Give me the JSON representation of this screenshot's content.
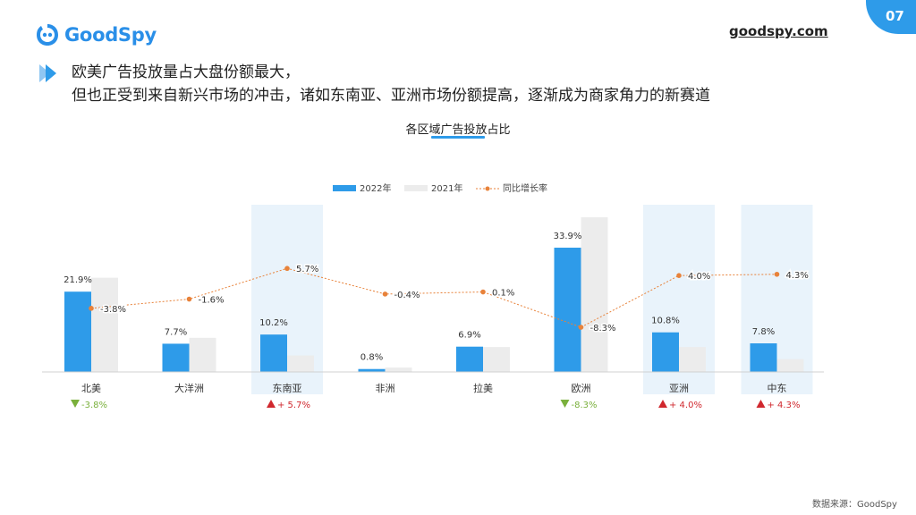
{
  "brand": {
    "name": "GoodSpy",
    "site": "goodspy.com",
    "page": "07"
  },
  "headline": {
    "line1": "欧美广告投放量占大盘份额最大，",
    "line2": "但也正受到来自新兴市场的冲击，诸如东南亚、亚洲市场份额提高，逐渐成为商家角力的新赛道"
  },
  "source": "数据来源：GoodSpy",
  "colors": {
    "accent": "#2e9be9",
    "bar2022": "#2e9be9",
    "bar2021": "#ececec",
    "line": "#e8823a",
    "up": "#d0282e",
    "down": "#7ab03c",
    "highlight": "#e9f3fb"
  },
  "chart_data": {
    "type": "bar",
    "title": "各区域广告投放占比",
    "categories": [
      "北美",
      "大洋洲",
      "东南亚",
      "非洲",
      "拉美",
      "欧洲",
      "亚洲",
      "中东"
    ],
    "series": [
      {
        "name": "2022年",
        "values": [
          21.9,
          7.7,
          10.2,
          0.8,
          6.9,
          33.9,
          10.8,
          7.8
        ],
        "labels": [
          "21.9%",
          "7.7%",
          "10.2%",
          "0.8%",
          "6.9%",
          "33.9%",
          "10.8%",
          "7.8%"
        ]
      },
      {
        "name": "2021年",
        "values": [
          25.7,
          9.3,
          4.5,
          1.2,
          6.8,
          42.2,
          6.8,
          3.5
        ]
      },
      {
        "name": "同比增长率",
        "type": "line",
        "values": [
          -3.8,
          -1.6,
          5.7,
          -0.4,
          0.1,
          -8.3,
          4.0,
          4.3
        ],
        "labels": [
          "-3.8%",
          "-1.6%",
          "5.7%",
          "-0.4%",
          "0.1%",
          "-8.3%",
          "4.0%",
          "4.3%"
        ]
      }
    ],
    "highlighted": [
      "东南亚",
      "亚洲",
      "中东"
    ],
    "change_labels": [
      {
        "category": "北美",
        "direction": "down",
        "text": "-3.8%"
      },
      {
        "category": "东南亚",
        "direction": "up",
        "text": "+ 5.7%"
      },
      {
        "category": "欧洲",
        "direction": "down",
        "text": "-8.3%"
      },
      {
        "category": "亚洲",
        "direction": "up",
        "text": "+ 4.0%"
      },
      {
        "category": "中东",
        "direction": "up",
        "text": "+ 4.3%"
      }
    ],
    "legend_position": "top"
  }
}
